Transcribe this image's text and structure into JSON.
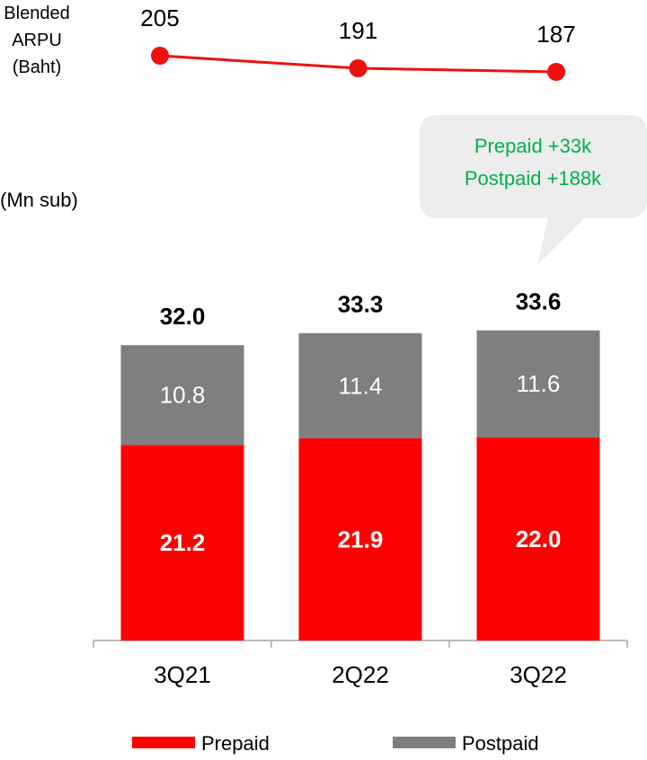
{
  "chart_data": {
    "type": "bar",
    "stacked": true,
    "unit_label": "(Mn sub)",
    "categories": [
      "3Q21",
      "2Q22",
      "3Q22"
    ],
    "series": [
      {
        "name": "Prepaid",
        "color": "#ff0000",
        "values": [
          21.2,
          21.9,
          22.0
        ],
        "value_labels": [
          "21.2",
          "21.9",
          "22.0"
        ]
      },
      {
        "name": "Postpaid",
        "color": "#7f7f7f",
        "values": [
          10.8,
          11.4,
          11.6
        ]
      },
      {
        "name": "Blended ARPU (Baht)",
        "type": "line",
        "axis": "y2",
        "color": "#f01010",
        "values": [
          205,
          191,
          187
        ]
      }
    ],
    "totals": {
      "values": [
        32.0,
        33.3,
        33.6
      ],
      "value_labels": [
        "32.0",
        "33.3",
        "33.6"
      ]
    },
    "ylim": [
      0,
      40
    ],
    "y2lim": [
      150,
      250
    ],
    "annotation": [
      "Prepaid +33k",
      "Postpaid +188k"
    ],
    "legend": "bottom"
  }
}
